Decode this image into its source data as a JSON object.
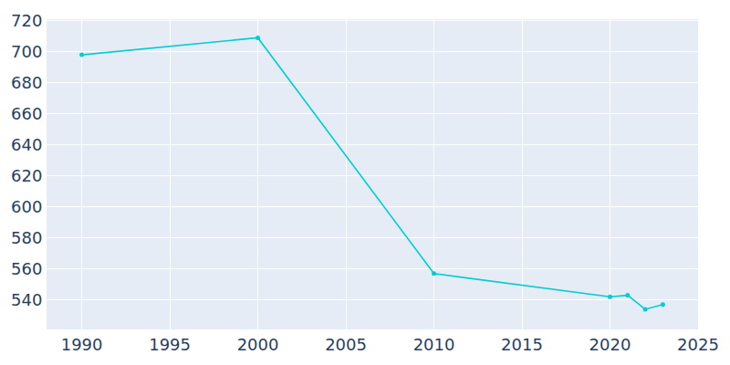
{
  "chart_data": {
    "type": "line",
    "x": [
      1990,
      2000,
      2010,
      2020,
      2021,
      2022,
      2023
    ],
    "values": [
      698,
      709,
      557,
      542,
      543,
      534,
      537
    ],
    "color": "#00ced1",
    "marker": "circle",
    "xlim": [
      1988,
      2025
    ],
    "xticks": [
      1990,
      1995,
      2000,
      2005,
      2010,
      2015,
      2020,
      2025
    ],
    "ylim": [
      521,
      721
    ],
    "yticks": [
      540,
      560,
      580,
      600,
      620,
      640,
      660,
      680,
      700,
      720
    ],
    "grid": true
  }
}
